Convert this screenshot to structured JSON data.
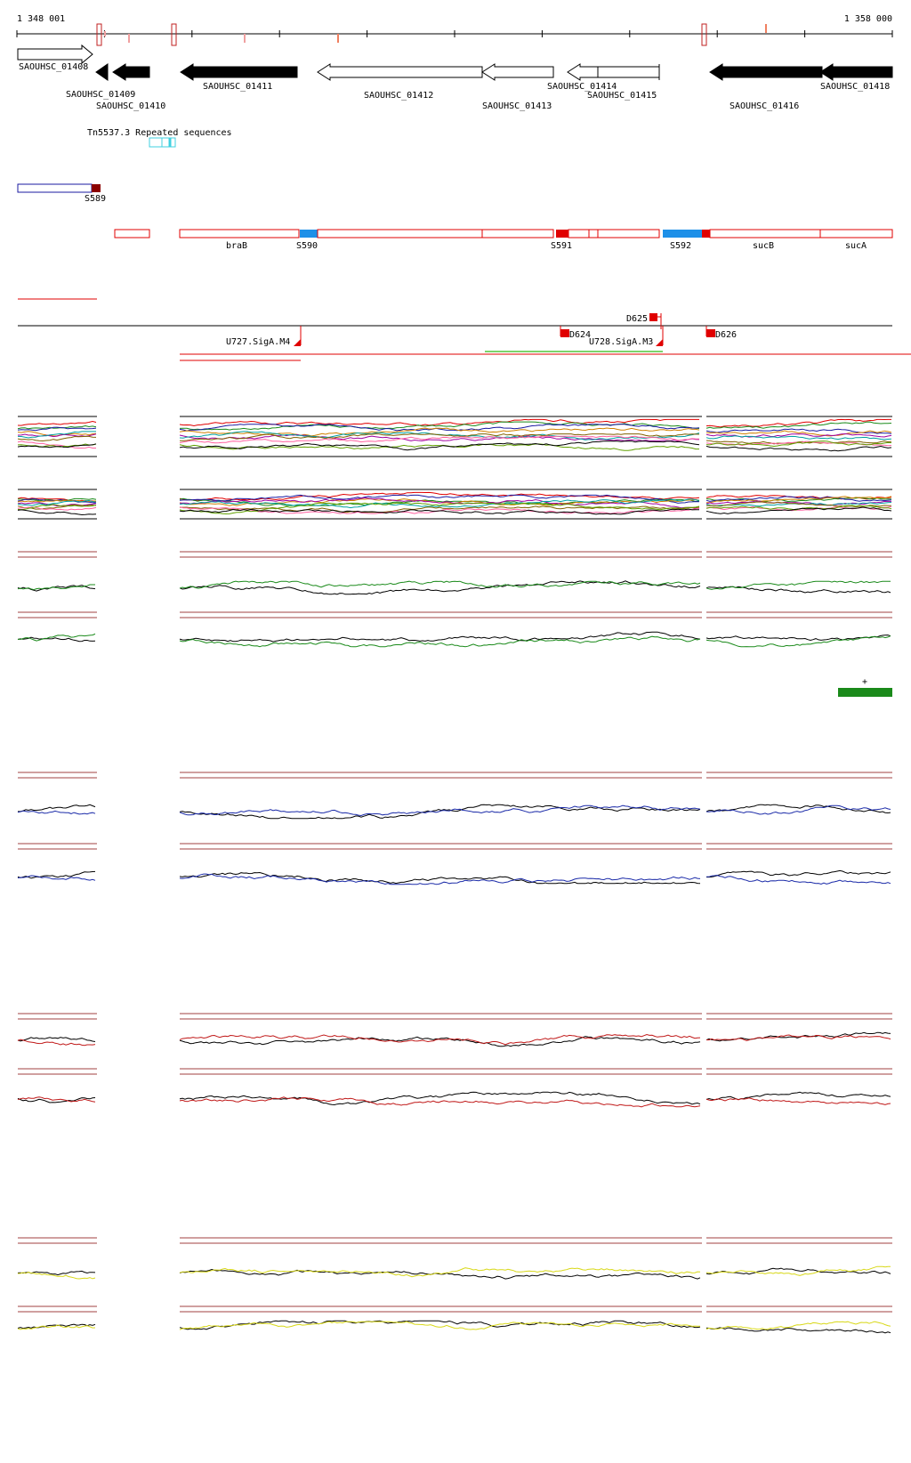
{
  "ruler": {
    "start_label": "1 348 001",
    "end_label": "1 358 000"
  },
  "genes": [
    {
      "id": "SAOUHSC_01408",
      "strand": "+",
      "style": "open"
    },
    {
      "id": "SAOUHSC_01409",
      "strand": "-",
      "style": "filled"
    },
    {
      "id": "SAOUHSC_01410",
      "strand": "-",
      "style": "filled"
    },
    {
      "id": "SAOUHSC_01411",
      "strand": "-",
      "style": "filled"
    },
    {
      "id": "SAOUHSC_01412",
      "strand": "-",
      "style": "open"
    },
    {
      "id": "SAOUHSC_01413",
      "strand": "-",
      "style": "open"
    },
    {
      "id": "SAOUHSC_01414",
      "strand": "-",
      "style": "open"
    },
    {
      "id": "SAOUHSC_01415",
      "strand": "+",
      "style": "open"
    },
    {
      "id": "SAOUHSC_01416",
      "strand": "-",
      "style": "filled"
    },
    {
      "id": "SAOUHSC_01418",
      "strand": "-",
      "style": "filled"
    }
  ],
  "repeat_label": "Tn5537.3 Repeated sequences",
  "segments": {
    "top": [
      {
        "label": "S589"
      }
    ],
    "main": [
      {
        "label": "braB"
      },
      {
        "label": "S590"
      },
      {
        "label": "S591"
      },
      {
        "label": "S592"
      },
      {
        "label": "sucB"
      },
      {
        "label": "sucA"
      }
    ]
  },
  "features": [
    {
      "label": "D625"
    },
    {
      "label": "D624"
    },
    {
      "label": "D626"
    },
    {
      "label": "U727.SigA.M4"
    },
    {
      "label": "U728.SigA.M3"
    }
  ],
  "strand_marker": "+",
  "colors": {
    "gene_outline": "#000000",
    "segment_outline": "#e00000",
    "segment_blue": "#1e90e8",
    "segment_red": "#e00000",
    "top_segment_blue": "#1a1aa0",
    "top_segment_dark": "#8b0000",
    "transcript_green": "#7cd46b",
    "tiling_green": "#1a8a1a",
    "tiling_blue": "#1a2aa8",
    "tiling_red": "#c01818",
    "tiling_yellow": "#d8d818",
    "baseline": "#a04040",
    "marker_green": "#1a8a1a"
  }
}
